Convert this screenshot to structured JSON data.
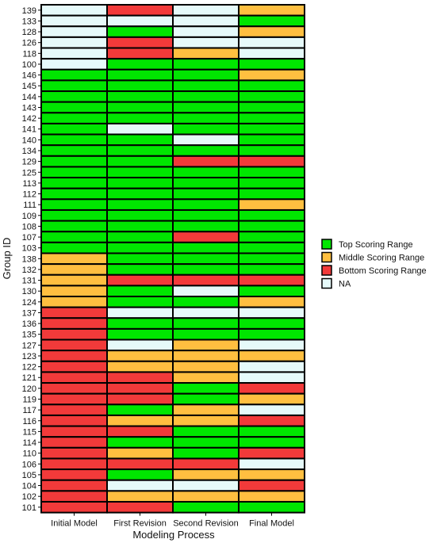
{
  "chart_data": {
    "type": "heatmap",
    "xlabel": "Modeling Process",
    "ylabel": "Group ID",
    "columns": [
      "Initial Model",
      "First Revision",
      "Second Revision",
      "Final Model"
    ],
    "legend": {
      "placement": "right",
      "entries": [
        {
          "key": "top",
          "label": "Top Scoring Range",
          "color": "#00e600"
        },
        {
          "key": "middle",
          "label": "Middle Scoring Range",
          "color": "#ffbf40"
        },
        {
          "key": "bottom",
          "label": "Bottom Scoring Range",
          "color": "#f23a3a"
        },
        {
          "key": "na",
          "label": "NA",
          "color": "#e6fafa"
        }
      ]
    },
    "rows": [
      {
        "id": "139",
        "values": [
          "na",
          "bottom",
          "na",
          "middle"
        ]
      },
      {
        "id": "133",
        "values": [
          "na",
          "na",
          "na",
          "top"
        ]
      },
      {
        "id": "128",
        "values": [
          "na",
          "top",
          "na",
          "middle"
        ]
      },
      {
        "id": "126",
        "values": [
          "na",
          "bottom",
          "na",
          "na"
        ]
      },
      {
        "id": "118",
        "values": [
          "na",
          "bottom",
          "middle",
          "na"
        ]
      },
      {
        "id": "100",
        "values": [
          "na",
          "top",
          "top",
          "top"
        ]
      },
      {
        "id": "146",
        "values": [
          "top",
          "top",
          "top",
          "middle"
        ]
      },
      {
        "id": "145",
        "values": [
          "top",
          "top",
          "top",
          "top"
        ]
      },
      {
        "id": "144",
        "values": [
          "top",
          "top",
          "top",
          "top"
        ]
      },
      {
        "id": "143",
        "values": [
          "top",
          "top",
          "top",
          "top"
        ]
      },
      {
        "id": "142",
        "values": [
          "top",
          "top",
          "top",
          "top"
        ]
      },
      {
        "id": "141",
        "values": [
          "top",
          "na",
          "top",
          "top"
        ]
      },
      {
        "id": "140",
        "values": [
          "top",
          "top",
          "na",
          "top"
        ]
      },
      {
        "id": "134",
        "values": [
          "top",
          "top",
          "top",
          "top"
        ]
      },
      {
        "id": "129",
        "values": [
          "top",
          "top",
          "bottom",
          "bottom"
        ]
      },
      {
        "id": "125",
        "values": [
          "top",
          "top",
          "top",
          "top"
        ]
      },
      {
        "id": "113",
        "values": [
          "top",
          "top",
          "top",
          "top"
        ]
      },
      {
        "id": "112",
        "values": [
          "top",
          "top",
          "top",
          "top"
        ]
      },
      {
        "id": "111",
        "values": [
          "top",
          "top",
          "top",
          "middle"
        ]
      },
      {
        "id": "109",
        "values": [
          "top",
          "top",
          "top",
          "top"
        ]
      },
      {
        "id": "108",
        "values": [
          "top",
          "top",
          "top",
          "top"
        ]
      },
      {
        "id": "107",
        "values": [
          "top",
          "top",
          "bottom",
          "top"
        ]
      },
      {
        "id": "103",
        "values": [
          "top",
          "top",
          "top",
          "top"
        ]
      },
      {
        "id": "138",
        "values": [
          "middle",
          "top",
          "top",
          "top"
        ]
      },
      {
        "id": "132",
        "values": [
          "middle",
          "top",
          "top",
          "top"
        ]
      },
      {
        "id": "131",
        "values": [
          "middle",
          "bottom",
          "bottom",
          "bottom"
        ]
      },
      {
        "id": "130",
        "values": [
          "middle",
          "top",
          "na",
          "top"
        ]
      },
      {
        "id": "124",
        "values": [
          "middle",
          "top",
          "top",
          "middle"
        ]
      },
      {
        "id": "137",
        "values": [
          "bottom",
          "na",
          "na",
          "na"
        ]
      },
      {
        "id": "136",
        "values": [
          "bottom",
          "top",
          "top",
          "top"
        ]
      },
      {
        "id": "135",
        "values": [
          "bottom",
          "top",
          "top",
          "top"
        ]
      },
      {
        "id": "127",
        "values": [
          "bottom",
          "na",
          "middle",
          "na"
        ]
      },
      {
        "id": "123",
        "values": [
          "bottom",
          "middle",
          "middle",
          "middle"
        ]
      },
      {
        "id": "122",
        "values": [
          "bottom",
          "middle",
          "middle",
          "na"
        ]
      },
      {
        "id": "121",
        "values": [
          "bottom",
          "bottom",
          "middle",
          "na"
        ]
      },
      {
        "id": "120",
        "values": [
          "bottom",
          "bottom",
          "top",
          "bottom"
        ]
      },
      {
        "id": "119",
        "values": [
          "bottom",
          "bottom",
          "top",
          "middle"
        ]
      },
      {
        "id": "117",
        "values": [
          "bottom",
          "top",
          "middle",
          "na"
        ]
      },
      {
        "id": "116",
        "values": [
          "bottom",
          "middle",
          "middle",
          "bottom"
        ]
      },
      {
        "id": "115",
        "values": [
          "bottom",
          "bottom",
          "top",
          "top"
        ]
      },
      {
        "id": "114",
        "values": [
          "bottom",
          "top",
          "top",
          "top"
        ]
      },
      {
        "id": "110",
        "values": [
          "bottom",
          "middle",
          "top",
          "bottom"
        ]
      },
      {
        "id": "106",
        "values": [
          "bottom",
          "bottom",
          "bottom",
          "na"
        ]
      },
      {
        "id": "105",
        "values": [
          "bottom",
          "top",
          "middle",
          "middle"
        ]
      },
      {
        "id": "104",
        "values": [
          "bottom",
          "na",
          "na",
          "bottom"
        ]
      },
      {
        "id": "102",
        "values": [
          "bottom",
          "middle",
          "middle",
          "middle"
        ]
      },
      {
        "id": "101",
        "values": [
          "bottom",
          "bottom",
          "top",
          "top"
        ]
      }
    ]
  }
}
